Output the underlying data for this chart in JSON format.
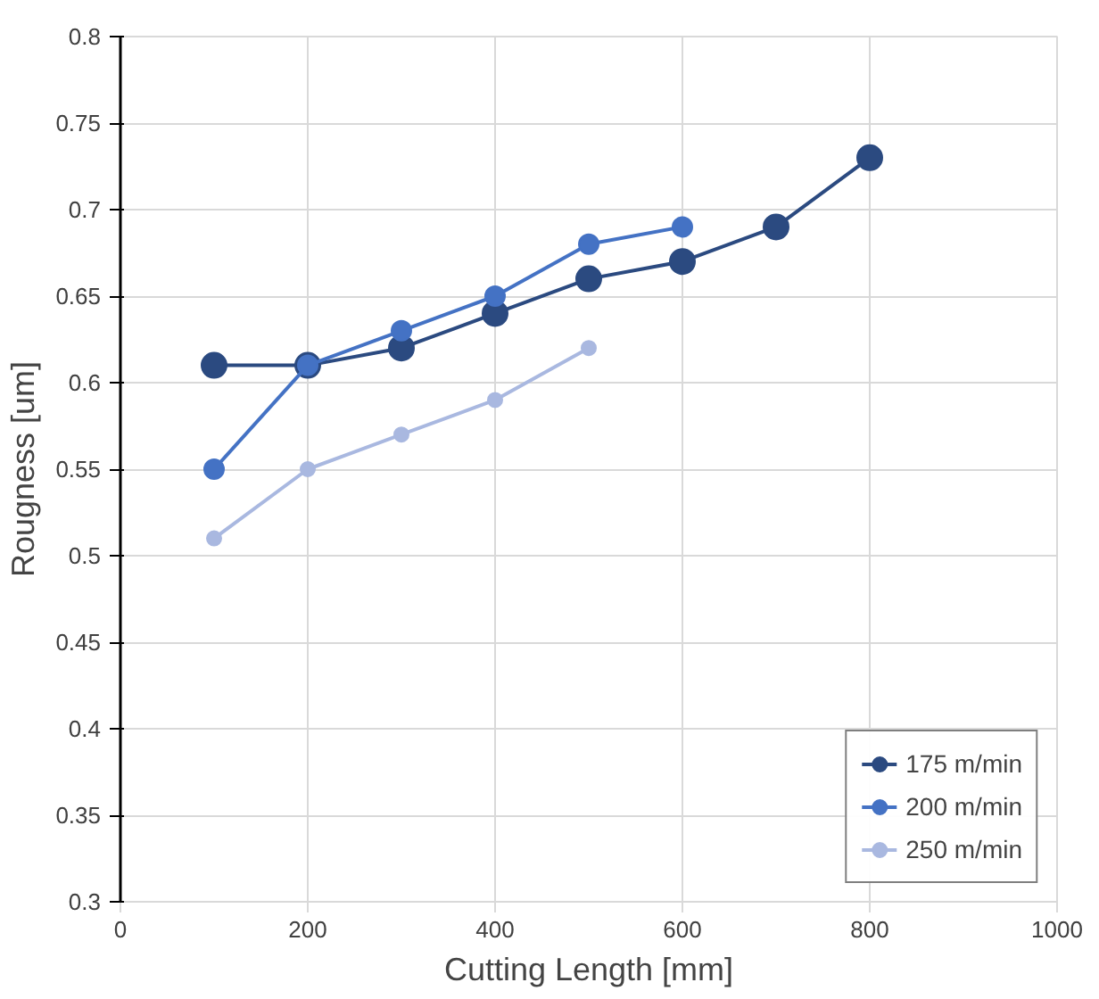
{
  "chart_data": {
    "type": "line",
    "xlabel": "Cutting Length [mm]",
    "ylabel": "Rougness [um]",
    "xlim": [
      0,
      1000
    ],
    "xticks": [
      0,
      200,
      400,
      600,
      800,
      1000
    ],
    "ylim": [
      0.3,
      0.8
    ],
    "yticks": [
      0.3,
      0.35,
      0.4,
      0.45,
      0.5,
      0.55,
      0.6,
      0.65,
      0.7,
      0.75,
      0.8
    ],
    "grid": true,
    "legend": "bottom right",
    "marker": "circle",
    "line_style": "solid",
    "series": [
      {
        "name": "175 m/min",
        "color": "#2b4a80",
        "x": [
          100,
          200,
          300,
          400,
          500,
          600,
          700,
          800
        ],
        "values": [
          0.61,
          0.61,
          0.62,
          0.64,
          0.66,
          0.67,
          0.69,
          0.73
        ]
      },
      {
        "name": "200 m/min",
        "color": "#4472c4",
        "x": [
          100,
          200,
          300,
          400,
          500,
          600
        ],
        "values": [
          0.55,
          0.61,
          0.63,
          0.65,
          0.68,
          0.69
        ]
      },
      {
        "name": "250 m/min",
        "color": "#a9b8e0",
        "x": [
          100,
          200,
          300,
          400,
          500
        ],
        "values": [
          0.51,
          0.55,
          0.57,
          0.59,
          0.62
        ]
      }
    ]
  }
}
